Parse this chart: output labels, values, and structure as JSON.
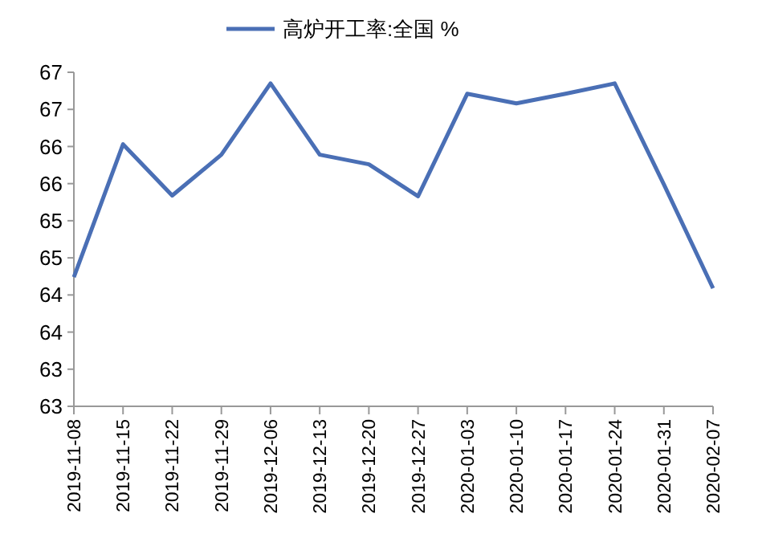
{
  "chart_data": {
    "type": "line",
    "categories": [
      "2019-11-08",
      "2019-11-15",
      "2019-11-22",
      "2019-11-29",
      "2019-12-06",
      "2019-12-13",
      "2019-12-20",
      "2019-12-27",
      "2020-01-03",
      "2020-01-10",
      "2020-01-17",
      "2020-01-24",
      "2020-01-31",
      "2020-02-07"
    ],
    "series": [
      {
        "name": "高炉开工率:全国 %",
        "color": "#4a6fb5",
        "values": [
          64.24,
          66.03,
          65.34,
          65.89,
          66.85,
          65.89,
          65.76,
          65.33,
          66.71,
          66.58,
          66.71,
          66.85,
          65.49,
          64.09
        ]
      }
    ],
    "ylim": [
      62.5,
      67
    ],
    "yticks": [
      {
        "value": 62.5,
        "label": "63"
      },
      {
        "value": 63,
        "label": "63"
      },
      {
        "value": 63.5,
        "label": "64"
      },
      {
        "value": 64,
        "label": "64"
      },
      {
        "value": 64.5,
        "label": "65"
      },
      {
        "value": 65,
        "label": "65"
      },
      {
        "value": 65.5,
        "label": "66"
      },
      {
        "value": 66,
        "label": "66"
      },
      {
        "value": 66.5,
        "label": "67"
      },
      {
        "value": 67,
        "label": "67"
      }
    ],
    "grid": false,
    "legend": "top",
    "marker": "none",
    "line_style": "solid"
  }
}
